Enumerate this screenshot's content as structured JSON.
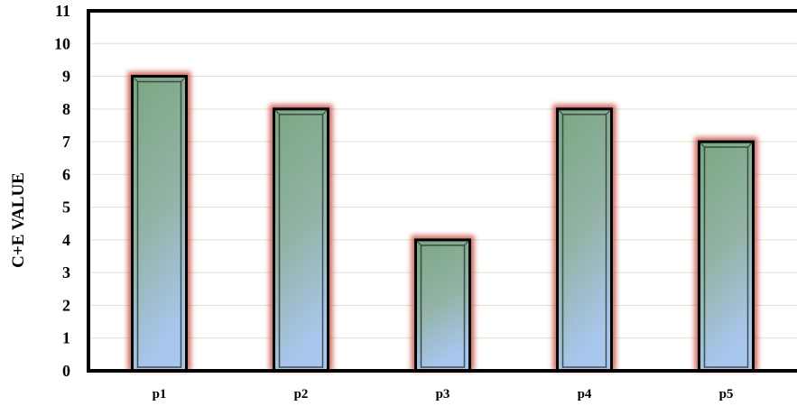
{
  "chart_data": {
    "type": "bar",
    "title": "",
    "xlabel": "",
    "ylabel": "C+E VALUE",
    "categories": [
      "p1",
      "p2",
      "p3",
      "p4",
      "p5"
    ],
    "values": [
      9,
      8,
      4,
      8,
      7
    ],
    "ylim": [
      0,
      11
    ],
    "yticks": [
      0,
      1,
      2,
      3,
      4,
      5,
      6,
      7,
      8,
      9,
      10,
      11
    ],
    "grid": true,
    "legend": "none",
    "colors": {
      "bar_top": "#7aa782",
      "bar_bottom": "#a8c4ea",
      "bar_outline": "#000000",
      "glow": "#c0392b",
      "grid": "#e4e1c8"
    }
  }
}
